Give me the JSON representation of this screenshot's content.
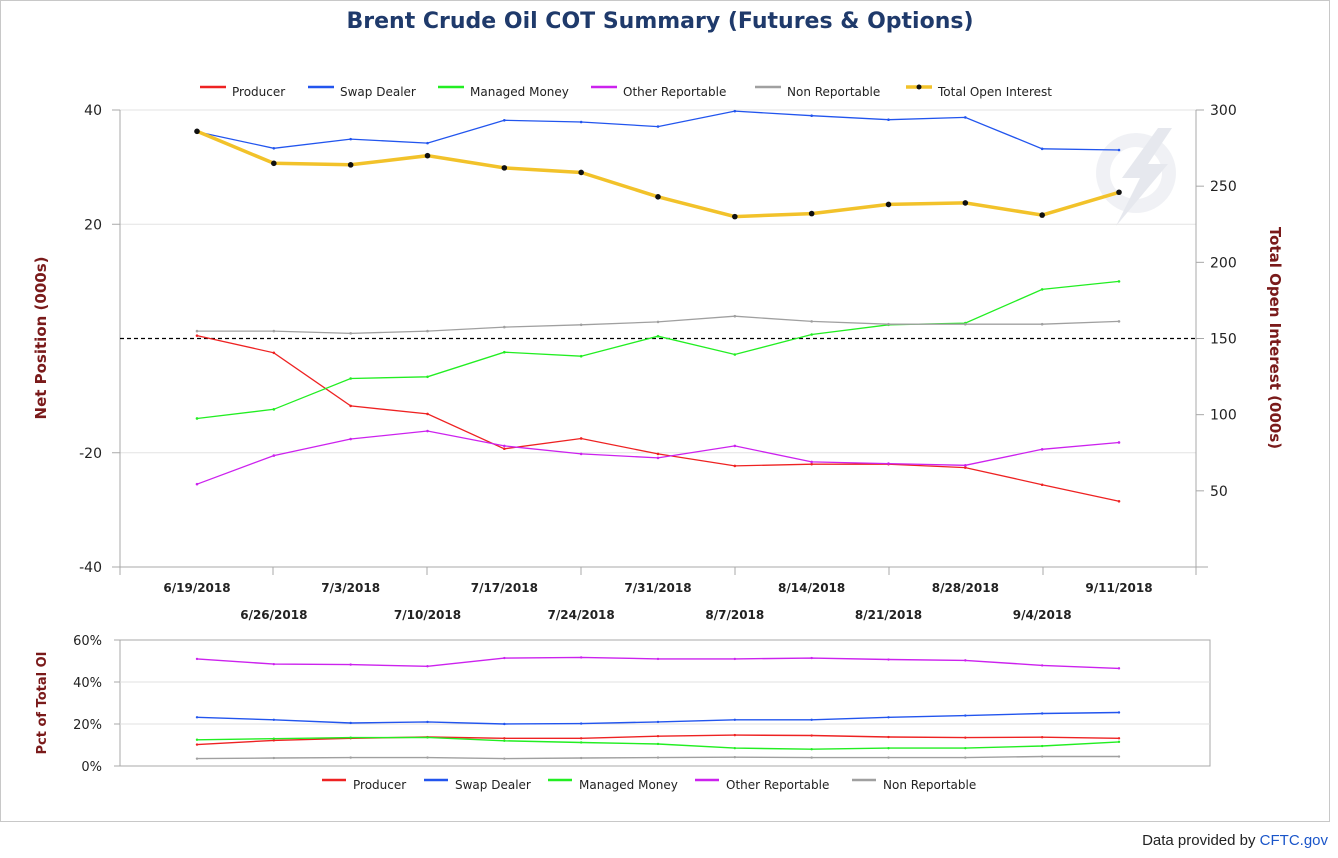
{
  "credit": {
    "prefix": "Data provided by ",
    "link": "CFTC.gov"
  },
  "colors": {
    "Producer": "#ee2222",
    "Swap Dealer": "#2255ee",
    "Managed Money": "#22ee22",
    "Other Reportable": "#cc22ee",
    "Non Reportable": "#a0a0a0",
    "Total Open Interest": "#f2c22a"
  },
  "chart_data": [
    {
      "type": "line",
      "title": "Brent Crude Oil COT Summary (Futures & Options)",
      "ylabel": "Net Position (000s)",
      "y2label": "Total Open Interest (000s)",
      "ylim": [
        -40,
        40
      ],
      "y2lim": [
        0,
        300
      ],
      "yticks": [
        40,
        20,
        -20,
        -40
      ],
      "y2ticks": [
        300,
        250,
        200,
        150,
        100,
        50
      ],
      "grid": true,
      "legend": "top",
      "categories": [
        "6/19/2018",
        "6/26/2018",
        "7/3/2018",
        "7/10/2018",
        "7/17/2018",
        "7/24/2018",
        "7/31/2018",
        "8/7/2018",
        "8/14/2018",
        "8/21/2018",
        "8/28/2018",
        "9/4/2018",
        "9/11/2018"
      ],
      "series": [
        {
          "name": "Producer",
          "axis": "left",
          "values": [
            0.5,
            -2.5,
            -11.8,
            -13.2,
            -19.3,
            -17.5,
            -20.2,
            -22.3,
            -22.0,
            -22.0,
            -22.6,
            -25.6,
            -28.5
          ]
        },
        {
          "name": "Swap Dealer",
          "axis": "left",
          "values": [
            36.2,
            33.3,
            34.9,
            34.2,
            38.2,
            37.9,
            37.1,
            39.8,
            39.0,
            38.3,
            38.7,
            33.2,
            33.0
          ]
        },
        {
          "name": "Managed Money",
          "axis": "left",
          "values": [
            -14.0,
            -12.4,
            -7.0,
            -6.7,
            -2.4,
            -3.1,
            0.4,
            -2.8,
            0.7,
            2.4,
            2.7,
            8.6,
            10.0
          ]
        },
        {
          "name": "Other Reportable",
          "axis": "left",
          "values": [
            -25.5,
            -20.5,
            -17.6,
            -16.2,
            -18.8,
            -20.2,
            -20.9,
            -18.8,
            -21.6,
            -21.9,
            -22.2,
            -19.4,
            -18.2
          ]
        },
        {
          "name": "Non Reportable",
          "axis": "left",
          "values": [
            1.3,
            1.3,
            0.9,
            1.3,
            2.0,
            2.4,
            2.9,
            3.9,
            3.0,
            2.5,
            2.5,
            2.5,
            3.0
          ]
        },
        {
          "name": "Total Open Interest",
          "axis": "right",
          "values": [
            286,
            265,
            264,
            270,
            262,
            259,
            243,
            230,
            232,
            238,
            239,
            231,
            246
          ]
        }
      ]
    },
    {
      "type": "line",
      "ylabel": "Pct of Total OI",
      "ylim": [
        0,
        60
      ],
      "yticks": [
        "60%",
        "40%",
        "20%",
        "0%"
      ],
      "yticks_values": [
        60,
        40,
        20,
        0
      ],
      "grid": true,
      "legend": "bottom",
      "categories": [
        "6/19/2018",
        "6/26/2018",
        "7/3/2018",
        "7/10/2018",
        "7/17/2018",
        "7/24/2018",
        "7/31/2018",
        "8/7/2018",
        "8/14/2018",
        "8/21/2018",
        "8/28/2018",
        "9/4/2018",
        "9/11/2018"
      ],
      "series": [
        {
          "name": "Producer",
          "values": [
            10.2,
            12.2,
            13.2,
            13.8,
            13.2,
            13.2,
            14.2,
            14.7,
            14.5,
            13.8,
            13.5,
            13.7,
            13.2
          ]
        },
        {
          "name": "Swap Dealer",
          "values": [
            23.2,
            22.0,
            20.5,
            21.0,
            20.0,
            20.2,
            21.0,
            22.0,
            22.0,
            23.2,
            24.0,
            25.0,
            25.5
          ]
        },
        {
          "name": "Managed Money",
          "values": [
            12.5,
            13.0,
            13.5,
            13.6,
            12.0,
            11.2,
            10.5,
            8.5,
            8.0,
            8.5,
            8.5,
            9.5,
            11.5
          ]
        },
        {
          "name": "Other Reportable",
          "values": [
            51.0,
            48.5,
            48.3,
            47.5,
            51.4,
            51.7,
            51.0,
            51.0,
            51.4,
            50.7,
            50.3,
            47.9,
            46.5
          ]
        },
        {
          "name": "Non Reportable",
          "values": [
            3.5,
            3.8,
            4.0,
            4.0,
            3.5,
            3.8,
            4.0,
            4.2,
            4.0,
            4.0,
            4.0,
            4.5,
            4.5
          ]
        }
      ]
    }
  ]
}
